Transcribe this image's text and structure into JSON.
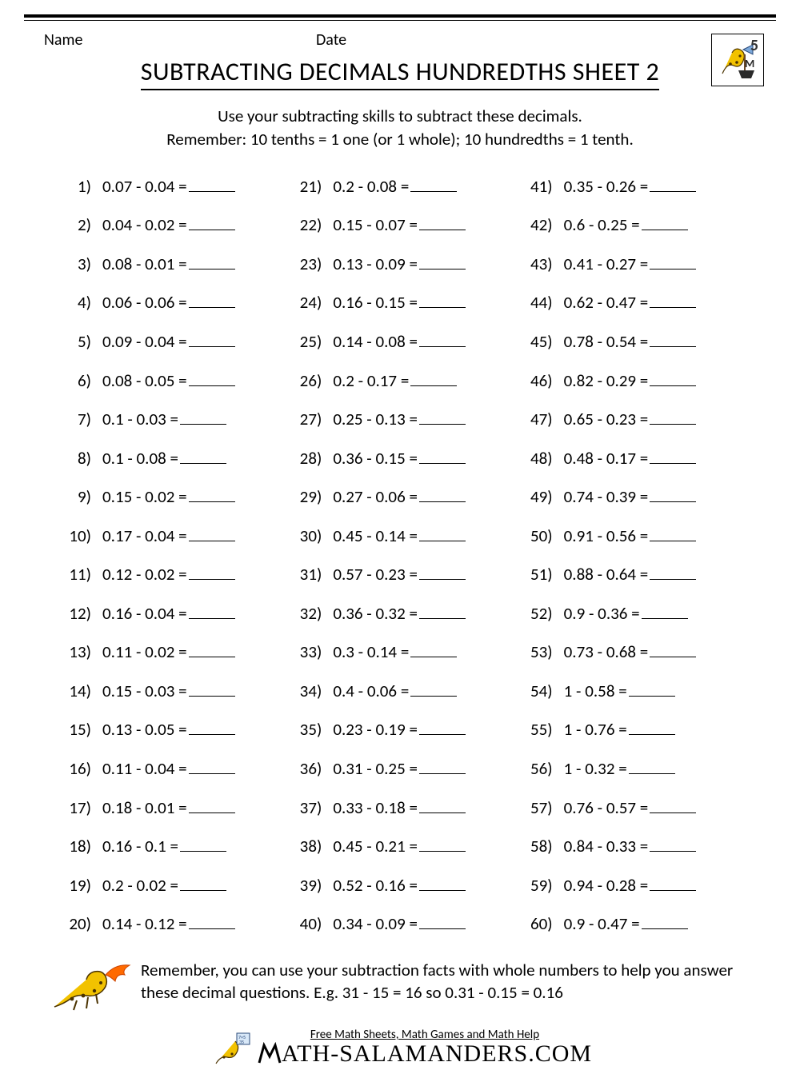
{
  "header": {
    "name_label": "Name",
    "date_label": "Date"
  },
  "title": "SUBTRACTING DECIMALS HUNDREDTHS SHEET 2",
  "grade_badge": "5",
  "instructions": {
    "line1": "Use your subtracting skills to subtract these decimals.",
    "line2": "Remember: 10 tenths = 1 one (or 1 whole); 10 hundredths = 1 tenth."
  },
  "problems": [
    {
      "n": "1)",
      "a": "0.07",
      "b": "0.04"
    },
    {
      "n": "2)",
      "a": "0.04",
      "b": "0.02"
    },
    {
      "n": "3)",
      "a": "0.08",
      "b": "0.01"
    },
    {
      "n": "4)",
      "a": "0.06",
      "b": "0.06"
    },
    {
      "n": "5)",
      "a": "0.09",
      "b": "0.04"
    },
    {
      "n": "6)",
      "a": "0.08",
      "b": "0.05"
    },
    {
      "n": "7)",
      "a": "0.1",
      "b": "0.03"
    },
    {
      "n": "8)",
      "a": "0.1",
      "b": "0.08"
    },
    {
      "n": "9)",
      "a": "0.15",
      "b": "0.02"
    },
    {
      "n": "10)",
      "a": "0.17",
      "b": "0.04"
    },
    {
      "n": "11)",
      "a": "0.12",
      "b": "0.02"
    },
    {
      "n": "12)",
      "a": "0.16",
      "b": "0.04"
    },
    {
      "n": "13)",
      "a": "0.11",
      "b": "0.02"
    },
    {
      "n": "14)",
      "a": "0.15",
      "b": "0.03"
    },
    {
      "n": "15)",
      "a": "0.13",
      "b": "0.05"
    },
    {
      "n": "16)",
      "a": "0.11",
      "b": "0.04"
    },
    {
      "n": "17)",
      "a": "0.18",
      "b": "0.01"
    },
    {
      "n": "18)",
      "a": "0.16",
      "b": "0.1"
    },
    {
      "n": "19)",
      "a": "0.2",
      "b": "0.02"
    },
    {
      "n": "20)",
      "a": "0.14",
      "b": "0.12"
    },
    {
      "n": "21)",
      "a": "0.2",
      "b": "0.08"
    },
    {
      "n": "22)",
      "a": "0.15",
      "b": "0.07"
    },
    {
      "n": "23)",
      "a": "0.13",
      "b": "0.09"
    },
    {
      "n": "24)",
      "a": "0.16",
      "b": "0.15"
    },
    {
      "n": "25)",
      "a": "0.14",
      "b": "0.08"
    },
    {
      "n": "26)",
      "a": "0.2",
      "b": "0.17"
    },
    {
      "n": "27)",
      "a": "0.25",
      "b": "0.13"
    },
    {
      "n": "28)",
      "a": "0.36",
      "b": "0.15"
    },
    {
      "n": "29)",
      "a": "0.27",
      "b": "0.06"
    },
    {
      "n": "30)",
      "a": "0.45",
      "b": "0.14"
    },
    {
      "n": "31)",
      "a": "0.57",
      "b": "0.23"
    },
    {
      "n": "32)",
      "a": "0.36",
      "b": "0.32"
    },
    {
      "n": "33)",
      "a": "0.3",
      "b": "0.14"
    },
    {
      "n": "34)",
      "a": "0.4",
      "b": "0.06"
    },
    {
      "n": "35)",
      "a": "0.23",
      "b": "0.19"
    },
    {
      "n": "36)",
      "a": "0.31",
      "b": "0.25"
    },
    {
      "n": "37)",
      "a": "0.33",
      "b": "0.18"
    },
    {
      "n": "38)",
      "a": "0.45",
      "b": "0.21"
    },
    {
      "n": "39)",
      "a": "0.52",
      "b": "0.16"
    },
    {
      "n": "40)",
      "a": "0.34",
      "b": "0.09"
    },
    {
      "n": "41)",
      "a": "0.35",
      "b": "0.26"
    },
    {
      "n": "42)",
      "a": "0.6",
      "b": "0.25"
    },
    {
      "n": "43)",
      "a": "0.41",
      "b": "0.27"
    },
    {
      "n": "44)",
      "a": "0.62",
      "b": "0.47"
    },
    {
      "n": "45)",
      "a": "0.78",
      "b": "0.54"
    },
    {
      "n": "46)",
      "a": "0.82",
      "b": "0.29"
    },
    {
      "n": "47)",
      "a": "0.65",
      "b": "0.23"
    },
    {
      "n": "48)",
      "a": "0.48",
      "b": "0.17"
    },
    {
      "n": "49)",
      "a": "0.74",
      "b": "0.39"
    },
    {
      "n": "50)",
      "a": "0.91",
      "b": "0.56"
    },
    {
      "n": "51)",
      "a": "0.88",
      "b": "0.64"
    },
    {
      "n": "52)",
      "a": "0.9",
      "b": "0.36"
    },
    {
      "n": "53)",
      "a": "0.73",
      "b": "0.68"
    },
    {
      "n": "54)",
      "a": "1",
      "b": "0.58"
    },
    {
      "n": "55)",
      "a": "1",
      "b": "0.76"
    },
    {
      "n": "56)",
      "a": "1",
      "b": "0.32"
    },
    {
      "n": "57)",
      "a": "0.76",
      "b": "0.57"
    },
    {
      "n": "58)",
      "a": "0.84",
      "b": "0.33"
    },
    {
      "n": "59)",
      "a": "0.94",
      "b": "0.28"
    },
    {
      "n": "60)",
      "a": "0.9",
      "b": "0.47"
    }
  ],
  "tip": "Remember, you can use your subtraction facts with whole numbers to help you answer these decimal questions. E.g. 31 - 15 = 16 so 0.31 - 0.15 = 0.16",
  "footer": {
    "tagline": "Free Math Sheets, Math Games and Math Help",
    "brand": "ATH-SALAMANDERS.COM"
  },
  "colors": {
    "text": "#000000",
    "bg": "#ffffff",
    "salamander": "#f2c200",
    "spots": "#4a3200",
    "flame": "#ff6a00"
  }
}
